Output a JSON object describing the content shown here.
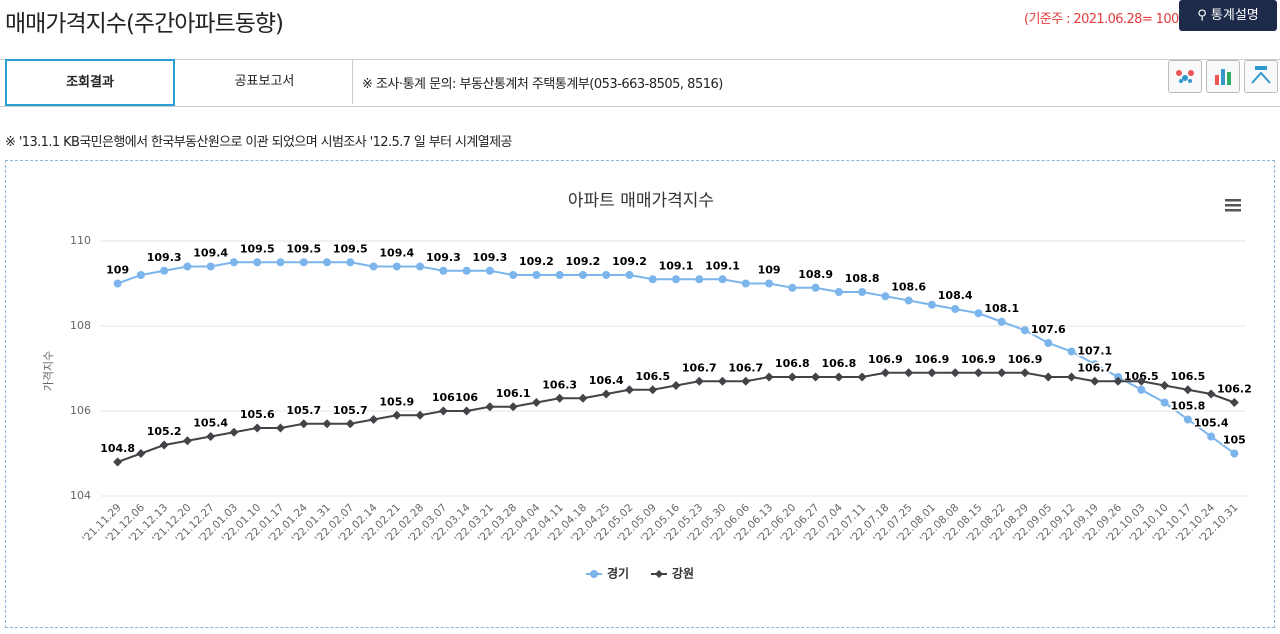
{
  "header": {
    "title": "매매가격지수(주간아파트동향)",
    "base_week": "(기준주 : 2021.06.28= 100)",
    "button": "통계설명"
  },
  "tabs": [
    "조회결과",
    "공표보고서"
  ],
  "contact": "※ 조사·통계 문의: 부동산통계처 주택통계부(053-663-8505, 8516)",
  "note": "※ '13.1.1 KB국민은행에서 한국부동산원으로 이관 되었으며 시범조사 '12.5.7 일 부터 시계열제공",
  "chart_data": {
    "type": "line",
    "title": "아파트 매매가격지수",
    "y_label": "가격지수",
    "categories": [
      "'21.11.29",
      "'21.12.06",
      "'21.12.13",
      "'21.12.20",
      "'21.12.27",
      "'22.01.03",
      "'22.01.10",
      "'22.01.17",
      "'22.01.24",
      "'22.01.31",
      "'22.02.07",
      "'22.02.14",
      "'22.02.21",
      "'22.02.28",
      "'22.03.07",
      "'22.03.14",
      "'22.03.21",
      "'22.03.28",
      "'22.04.04",
      "'22.04.11",
      "'22.04.18",
      "'22.04.25",
      "'22.05.02",
      "'22.05.09",
      "'22.05.16",
      "'22.05.23",
      "'22.05.30",
      "'22.06.06",
      "'22.06.13",
      "'22.06.20",
      "'22.06.27",
      "'22.07.04",
      "'22.07.11",
      "'22.07.18",
      "'22.07.25",
      "'22.08.01",
      "'22.08.08",
      "'22.08.15",
      "'22.08.22",
      "'22.08.29",
      "'22.09.05",
      "'22.09.12",
      "'22.09.19",
      "'22.09.26",
      "'22.10.03",
      "'22.10.10",
      "'22.10.17",
      "'22.10.24",
      "'22.10.31"
    ],
    "series": [
      {
        "name": "경기",
        "color": "#7cb5ec",
        "marker": "circle",
        "values": [
          109,
          109.2,
          109.3,
          109.4,
          109.4,
          109.5,
          109.5,
          109.5,
          109.5,
          109.5,
          109.5,
          109.4,
          109.4,
          109.4,
          109.3,
          109.3,
          109.3,
          109.2,
          109.2,
          109.2,
          109.2,
          109.2,
          109.2,
          109.1,
          109.1,
          109.1,
          109.1,
          109,
          109,
          108.9,
          108.9,
          108.8,
          108.8,
          108.7,
          108.6,
          108.5,
          108.4,
          108.3,
          108.1,
          107.9,
          107.6,
          107.4,
          107.1,
          106.8,
          106.5,
          106.2,
          105.8,
          105.4,
          105
        ],
        "value_labels": [
          "109",
          null,
          "109.3",
          null,
          "109.4",
          null,
          "109.5",
          null,
          "109.5",
          null,
          "109.5",
          null,
          "109.4",
          null,
          "109.3",
          null,
          "109.3",
          null,
          "109.2",
          null,
          "109.2",
          null,
          "109.2",
          null,
          "109.1",
          null,
          "109.1",
          null,
          "109",
          null,
          "108.9",
          null,
          "108.8",
          null,
          "108.6",
          null,
          "108.4",
          null,
          "108.1",
          null,
          "107.6",
          null,
          "107.1",
          null,
          "106.5",
          null,
          "105.8",
          "105.4",
          "105"
        ]
      },
      {
        "name": "강원",
        "color": "#434348",
        "marker": "diamond",
        "values": [
          104.8,
          105,
          105.2,
          105.3,
          105.4,
          105.5,
          105.6,
          105.6,
          105.7,
          105.7,
          105.7,
          105.8,
          105.9,
          105.9,
          106,
          106,
          106.1,
          106.1,
          106.2,
          106.3,
          106.3,
          106.4,
          106.5,
          106.5,
          106.6,
          106.7,
          106.7,
          106.7,
          106.8,
          106.8,
          106.8,
          106.8,
          106.8,
          106.9,
          106.9,
          106.9,
          106.9,
          106.9,
          106.9,
          106.9,
          106.8,
          106.8,
          106.7,
          106.7,
          106.7,
          106.6,
          106.5,
          106.4,
          106.2
        ],
        "value_labels": [
          "104.8",
          null,
          "105.2",
          null,
          "105.4",
          null,
          "105.6",
          null,
          "105.7",
          null,
          "105.7",
          null,
          "105.9",
          null,
          "106",
          "106",
          null,
          "106.1",
          null,
          "106.3",
          null,
          "106.4",
          null,
          "106.5",
          null,
          "106.7",
          null,
          "106.7",
          null,
          "106.8",
          null,
          "106.8",
          null,
          "106.9",
          null,
          "106.9",
          null,
          "106.9",
          null,
          "106.9",
          null,
          null,
          "106.7",
          null,
          null,
          null,
          "106.5",
          null,
          "106.2"
        ]
      }
    ],
    "ylim": [
      104,
      110
    ],
    "yticks": [
      104,
      106,
      108,
      110
    ],
    "grid": true,
    "legend": "bottom"
  }
}
